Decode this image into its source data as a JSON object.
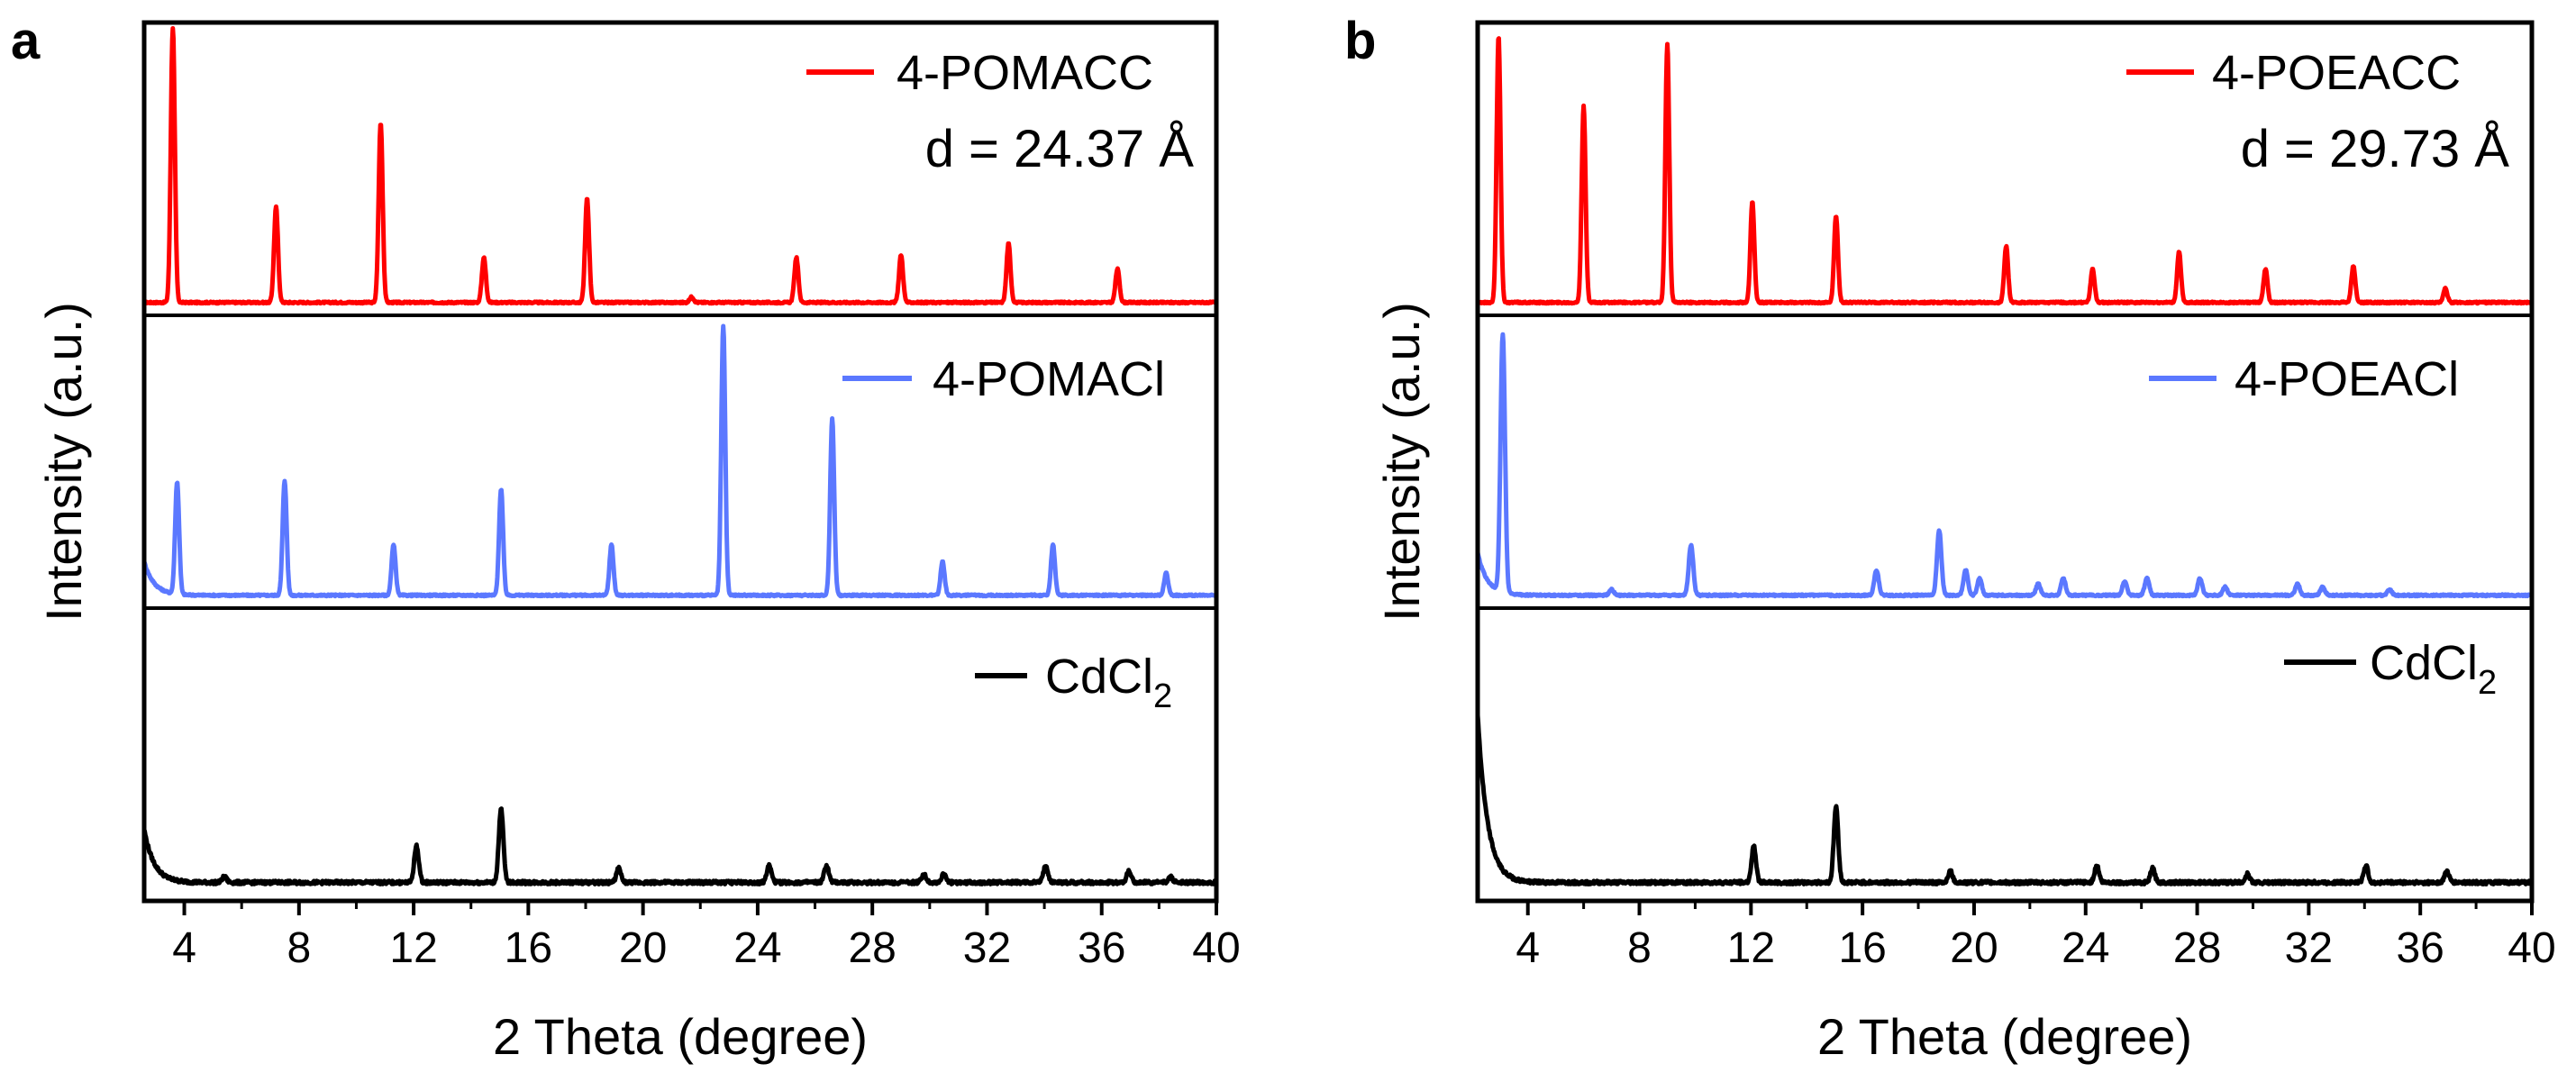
{
  "figure": {
    "background": "#ffffff"
  },
  "colors": {
    "red": "#ff0000",
    "blue": "#5b78ff",
    "black": "#000000"
  },
  "chart_data": [
    {
      "type": "line",
      "panel_label": "a",
      "xlabel": "2 Theta (degree)",
      "ylabel": "Intensity (a.u.)",
      "xlim": [
        2.6,
        40
      ],
      "xticks": [
        4,
        8,
        12,
        16,
        20,
        24,
        28,
        32,
        36,
        40
      ],
      "tick_labels": [
        "4",
        "8",
        "12",
        "16",
        "20",
        "24",
        "28",
        "32",
        "36",
        "40"
      ],
      "series": [
        {
          "name": "4-POMACC",
          "legend": "4-POMACC",
          "annotation": "d = 24.37 Å",
          "color": "#ff0000",
          "baseline": 0.02,
          "peaks": [
            [
              3.6,
              0.98
            ],
            [
              7.2,
              0.34
            ],
            [
              10.85,
              0.64
            ],
            [
              14.45,
              0.16
            ],
            [
              18.05,
              0.37
            ],
            [
              21.7,
              0.02
            ],
            [
              25.35,
              0.16
            ],
            [
              29.0,
              0.17
            ],
            [
              32.75,
              0.21
            ],
            [
              36.55,
              0.12
            ]
          ],
          "width": 0.07
        },
        {
          "name": "4-POMACl",
          "legend": "4-POMACl",
          "color": "#5b78ff",
          "baseline": 0.02,
          "initial_tail": 0.12,
          "peaks": [
            [
              3.75,
              0.4
            ],
            [
              7.5,
              0.41
            ],
            [
              11.3,
              0.18
            ],
            [
              15.05,
              0.38
            ],
            [
              18.9,
              0.18
            ],
            [
              22.8,
              0.96
            ],
            [
              26.6,
              0.63
            ],
            [
              30.45,
              0.12
            ],
            [
              34.3,
              0.18
            ],
            [
              38.25,
              0.08
            ]
          ],
          "width": 0.07
        },
        {
          "name": "CdCl2",
          "legend": "CdCl",
          "legend_sub": "2",
          "color": "#000000",
          "baseline": 0.04,
          "initial_tail": 0.19,
          "peaks": [
            [
              5.4,
              0.02
            ],
            [
              12.1,
              0.13
            ],
            [
              15.05,
              0.26
            ],
            [
              19.15,
              0.05
            ],
            [
              24.4,
              0.06
            ],
            [
              26.4,
              0.06
            ],
            [
              29.8,
              0.03
            ],
            [
              30.5,
              0.03
            ],
            [
              34.05,
              0.06
            ],
            [
              36.95,
              0.04
            ],
            [
              38.4,
              0.02
            ]
          ],
          "width": 0.08
        }
      ]
    },
    {
      "type": "line",
      "panel_label": "b",
      "xlabel": "2 Theta (degree)",
      "ylabel": "Intensity (a.u.)",
      "xlim": [
        2.2,
        40
      ],
      "xticks": [
        4,
        8,
        12,
        16,
        20,
        24,
        28,
        32,
        36,
        40
      ],
      "tick_labels": [
        "4",
        "8",
        "12",
        "16",
        "20",
        "24",
        "28",
        "32",
        "36",
        "40"
      ],
      "series": [
        {
          "name": "4-POEACC",
          "legend": "4-POEACC",
          "annotation": "d = 29.73 Å",
          "color": "#ff0000",
          "baseline": 0.02,
          "peaks": [
            [
              2.95,
              0.95
            ],
            [
              6.0,
              0.7
            ],
            [
              9.0,
              0.92
            ],
            [
              12.05,
              0.36
            ],
            [
              15.05,
              0.31
            ],
            [
              21.15,
              0.2
            ],
            [
              24.25,
              0.12
            ],
            [
              27.35,
              0.18
            ],
            [
              30.45,
              0.12
            ],
            [
              33.6,
              0.13
            ],
            [
              36.9,
              0.05
            ]
          ],
          "width": 0.07
        },
        {
          "name": "4-POEACl",
          "legend": "4-POEACl",
          "color": "#5b78ff",
          "baseline": 0.02,
          "initial_tail": 0.15,
          "peaks": [
            [
              3.1,
              0.92
            ],
            [
              7.0,
              0.02
            ],
            [
              9.85,
              0.18
            ],
            [
              16.5,
              0.09
            ],
            [
              18.75,
              0.23
            ],
            [
              19.7,
              0.09
            ],
            [
              20.2,
              0.06
            ],
            [
              22.3,
              0.04
            ],
            [
              23.2,
              0.06
            ],
            [
              25.4,
              0.05
            ],
            [
              26.2,
              0.06
            ],
            [
              28.1,
              0.06
            ],
            [
              29.0,
              0.03
            ],
            [
              31.6,
              0.04
            ],
            [
              32.5,
              0.03
            ],
            [
              34.9,
              0.02
            ]
          ],
          "width": 0.08
        },
        {
          "name": "CdCl2",
          "legend": "CdCl",
          "legend_sub": "2",
          "color": "#000000",
          "baseline": 0.04,
          "initial_tail": 0.6,
          "peaks": [
            [
              12.1,
              0.13
            ],
            [
              15.05,
              0.27
            ],
            [
              19.15,
              0.04
            ],
            [
              24.4,
              0.06
            ],
            [
              26.4,
              0.05
            ],
            [
              29.8,
              0.03
            ],
            [
              34.05,
              0.06
            ],
            [
              36.95,
              0.04
            ]
          ],
          "width": 0.08
        }
      ]
    }
  ]
}
